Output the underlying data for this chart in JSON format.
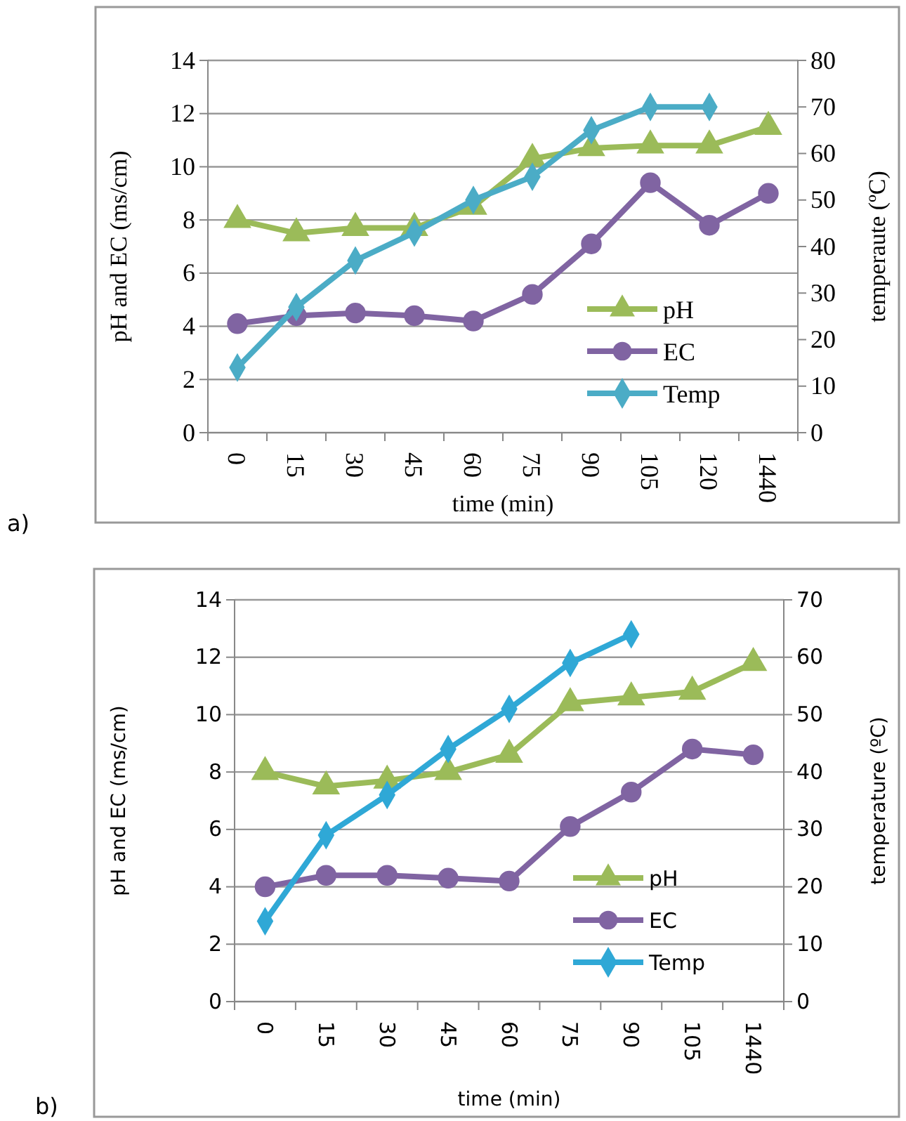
{
  "chart_data": [
    {
      "type": "line",
      "xlabel": "time (min)",
      "ylabel": "pH and EC (ms/cm)",
      "y2label": "temperaute (ºC)",
      "categories": [
        "0",
        "15",
        "30",
        "45",
        "60",
        "75",
        "90",
        "105",
        "120",
        "1440"
      ],
      "series": [
        {
          "name": "pH",
          "color": "#9bbb59",
          "marker": "triangle",
          "values": [
            8.0,
            7.5,
            7.7,
            7.7,
            8.5,
            10.3,
            10.7,
            10.8,
            10.8,
            11.5
          ]
        },
        {
          "name": "EC",
          "color": "#8064a2",
          "marker": "circle",
          "values": [
            4.1,
            4.4,
            4.5,
            4.4,
            4.2,
            5.2,
            7.1,
            9.4,
            7.8,
            9.0
          ]
        },
        {
          "name": "Temp",
          "color": "#4bacc6",
          "marker": "diamond",
          "axis": "y2",
          "values": [
            14,
            27,
            37,
            43,
            50,
            55,
            65,
            70,
            70,
            null
          ]
        }
      ],
      "ylim": [
        0,
        14
      ],
      "yticks": [
        0,
        2,
        4,
        6,
        8,
        10,
        12,
        14
      ],
      "y2lim": [
        0,
        80
      ],
      "y2ticks": [
        0,
        10,
        20,
        30,
        40,
        50,
        60,
        70,
        80
      ],
      "grid": "y",
      "legend": "bottom right",
      "annotations": [
        "a)"
      ]
    },
    {
      "type": "line",
      "xlabel": "time (min)",
      "ylabel": "pH and EC (ms/cm)",
      "y2label": "temperature (ºC)",
      "categories": [
        "0",
        "15",
        "30",
        "45",
        "60",
        "75",
        "90",
        "105",
        "1440"
      ],
      "series": [
        {
          "name": "pH",
          "color": "#9bbb59",
          "marker": "triangle",
          "values": [
            8.0,
            7.5,
            7.7,
            8.0,
            8.6,
            10.4,
            10.6,
            10.8,
            11.8
          ]
        },
        {
          "name": "EC",
          "color": "#8064a2",
          "marker": "circle",
          "values": [
            4.0,
            4.4,
            4.4,
            4.3,
            4.2,
            6.1,
            7.3,
            8.8,
            8.6
          ]
        },
        {
          "name": "Temp",
          "color": "#2fa8d6",
          "marker": "diamond",
          "axis": "y2",
          "values": [
            14,
            29,
            36,
            44,
            51,
            59,
            64,
            null,
            null
          ]
        }
      ],
      "ylim": [
        0,
        14
      ],
      "yticks": [
        0,
        2,
        4,
        6,
        8,
        10,
        12,
        14
      ],
      "y2lim": [
        0,
        70
      ],
      "y2ticks": [
        0,
        10,
        20,
        30,
        40,
        50,
        60,
        70
      ],
      "grid": "y",
      "legend": "bottom right",
      "annotations": [
        "b)"
      ]
    }
  ]
}
